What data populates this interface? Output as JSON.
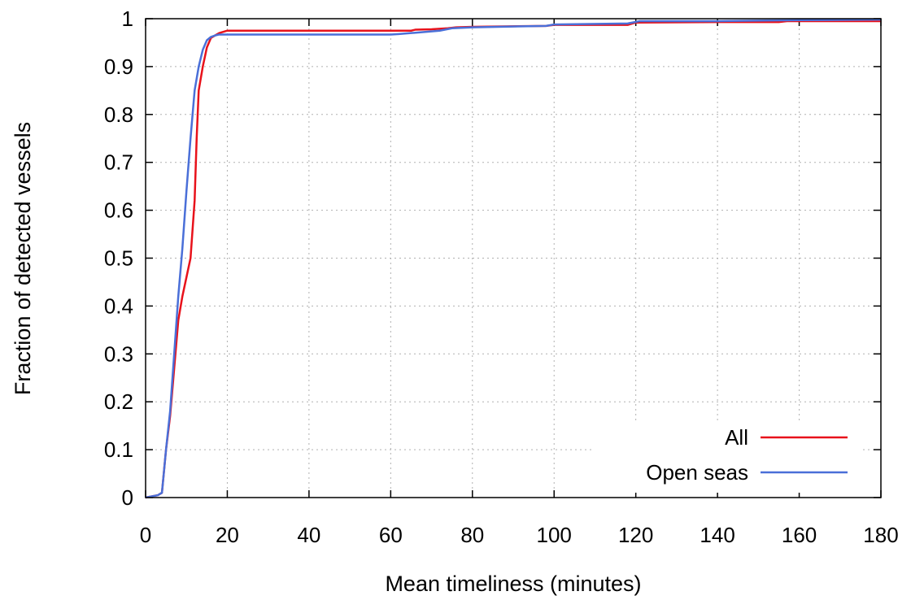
{
  "chart_data": {
    "type": "line",
    "title": "",
    "xlabel": "Mean timeliness (minutes)",
    "ylabel": "Fraction of detected vessels",
    "xlim": [
      0,
      180
    ],
    "ylim": [
      0,
      1
    ],
    "x_ticks": [
      0,
      20,
      40,
      60,
      80,
      100,
      120,
      140,
      160,
      180
    ],
    "y_ticks": [
      0,
      0.1,
      0.2,
      0.3,
      0.4,
      0.5,
      0.6,
      0.7,
      0.8,
      0.9,
      1
    ],
    "x_tick_labels": [
      "0",
      "20",
      "40",
      "60",
      "80",
      "100",
      "120",
      "140",
      "160",
      "180"
    ],
    "y_tick_labels": [
      "0",
      "0.1",
      "0.2",
      "0.3",
      "0.4",
      "0.5",
      "0.6",
      "0.7",
      "0.8",
      "0.9",
      "1"
    ],
    "grid": true,
    "legend_position": "bottom-right",
    "series": [
      {
        "name": "All",
        "color": "#e8121b",
        "points": [
          [
            0,
            0
          ],
          [
            3,
            0.005
          ],
          [
            4,
            0.01
          ],
          [
            5,
            0.1
          ],
          [
            6,
            0.17
          ],
          [
            7,
            0.27
          ],
          [
            8,
            0.37
          ],
          [
            9,
            0.42
          ],
          [
            10,
            0.46
          ],
          [
            11,
            0.5
          ],
          [
            12,
            0.62
          ],
          [
            12.5,
            0.75
          ],
          [
            13,
            0.85
          ],
          [
            14,
            0.9
          ],
          [
            15,
            0.94
          ],
          [
            16,
            0.96
          ],
          [
            17,
            0.965
          ],
          [
            18,
            0.97
          ],
          [
            20,
            0.975
          ],
          [
            40,
            0.975
          ],
          [
            60,
            0.975
          ],
          [
            65,
            0.975
          ],
          [
            66,
            0.977
          ],
          [
            70,
            0.978
          ],
          [
            74,
            0.98
          ],
          [
            76,
            0.982
          ],
          [
            80,
            0.983
          ],
          [
            98,
            0.985
          ],
          [
            100,
            0.987
          ],
          [
            118,
            0.987
          ],
          [
            120,
            0.992
          ],
          [
            140,
            0.993
          ],
          [
            155,
            0.993
          ],
          [
            157,
            0.995
          ],
          [
            160,
            0.995
          ],
          [
            180,
            0.995
          ]
        ]
      },
      {
        "name": "Open seas",
        "color": "#4a6fd8",
        "points": [
          [
            0,
            0
          ],
          [
            3,
            0.005
          ],
          [
            4,
            0.01
          ],
          [
            5,
            0.1
          ],
          [
            6,
            0.18
          ],
          [
            7,
            0.3
          ],
          [
            8,
            0.42
          ],
          [
            9,
            0.52
          ],
          [
            10,
            0.64
          ],
          [
            11,
            0.75
          ],
          [
            12,
            0.85
          ],
          [
            13,
            0.9
          ],
          [
            14,
            0.935
          ],
          [
            15,
            0.955
          ],
          [
            16,
            0.962
          ],
          [
            17,
            0.965
          ],
          [
            18,
            0.967
          ],
          [
            20,
            0.967
          ],
          [
            40,
            0.967
          ],
          [
            60,
            0.967
          ],
          [
            62,
            0.968
          ],
          [
            65,
            0.97
          ],
          [
            72,
            0.975
          ],
          [
            75,
            0.98
          ],
          [
            80,
            0.982
          ],
          [
            98,
            0.985
          ],
          [
            100,
            0.988
          ],
          [
            118,
            0.99
          ],
          [
            121,
            0.995
          ],
          [
            140,
            0.995
          ],
          [
            160,
            0.997
          ],
          [
            180,
            0.998
          ]
        ]
      }
    ]
  }
}
